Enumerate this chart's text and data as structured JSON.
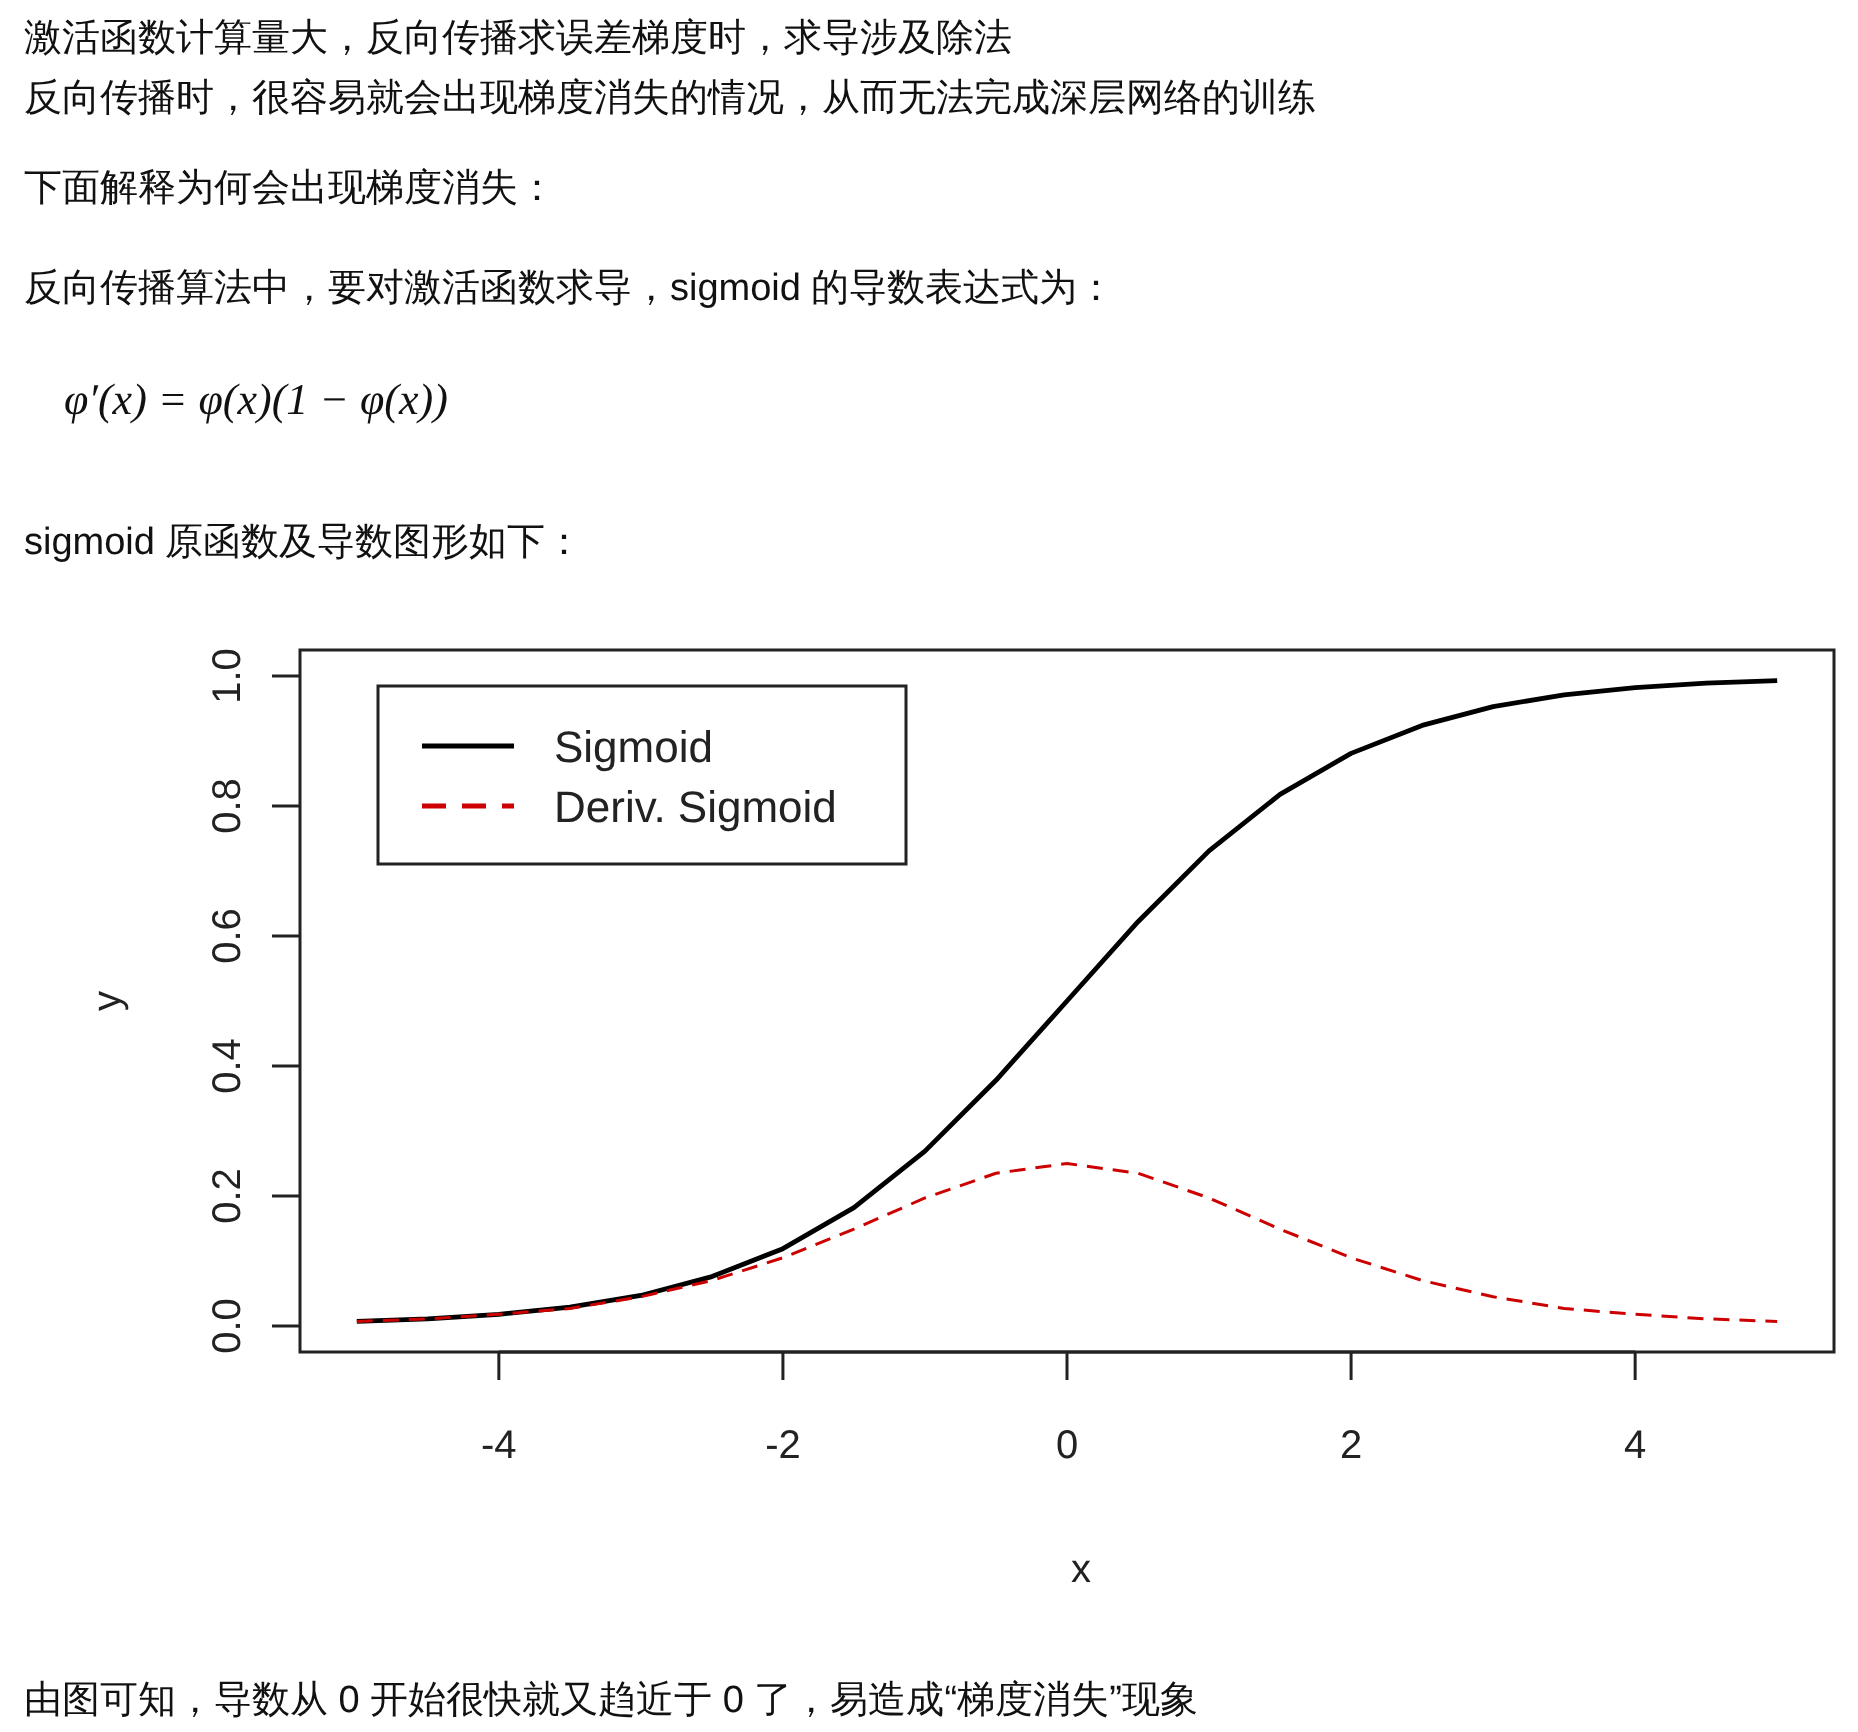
{
  "chart_data": {
    "type": "line",
    "annotations": [
      "激活函数计算量大，反向传播求误差梯度时，求导涉及除法",
      "反向传播时，很容易就会出现梯度消失的情况，从而无法完成深层网络的训练",
      "下面解释为何会出现梯度消失：",
      "反向传播算法中，要对激活函数求导，sigmoid 的导数表达式为：",
      "φ′(x) = φ(x)(1 − φ(x))",
      "sigmoid 原函数及导数图形如下：",
      "由图可知，导数从 0 开始很快就又趋近于 0 了，易造成“梯度消失”现象"
    ],
    "xlabel": "x",
    "ylabel": "y",
    "x": [
      -5,
      -4.5,
      -4,
      -3.5,
      -3,
      -2.5,
      -2,
      -1.5,
      -1,
      -0.5,
      0,
      0.5,
      1,
      1.5,
      2,
      2.5,
      3,
      3.5,
      4,
      4.5,
      5
    ],
    "series": [
      {
        "name": "Sigmoid",
        "color": "#000000",
        "line_style": "solid",
        "values": [
          0.007,
          0.011,
          0.018,
          0.029,
          0.047,
          0.076,
          0.119,
          0.182,
          0.269,
          0.378,
          0.5,
          0.622,
          0.731,
          0.818,
          0.881,
          0.924,
          0.953,
          0.971,
          0.982,
          0.989,
          0.993
        ]
      },
      {
        "name": "Deriv. Sigmoid",
        "color": "#cc0000",
        "line_style": "dashed",
        "values": [
          0.007,
          0.011,
          0.018,
          0.027,
          0.045,
          0.07,
          0.105,
          0.149,
          0.197,
          0.235,
          0.25,
          0.235,
          0.197,
          0.149,
          0.105,
          0.07,
          0.045,
          0.027,
          0.018,
          0.011,
          0.007
        ]
      }
    ],
    "xlim": [
      -5.4,
      5.4
    ],
    "ylim": [
      -0.04,
      1.04
    ],
    "xticks": [
      -4,
      -2,
      0,
      2,
      4
    ],
    "yticks": [
      {
        "value": 0,
        "label": "0.0"
      },
      {
        "value": 0.2,
        "label": "0.2"
      },
      {
        "value": 0.4,
        "label": "0.4"
      },
      {
        "value": 0.6,
        "label": "0.6"
      },
      {
        "value": 0.8,
        "label": "0.8"
      },
      {
        "value": 1,
        "label": "1.0"
      }
    ],
    "legend": "top left",
    "grid": false,
    "marker": "none"
  }
}
